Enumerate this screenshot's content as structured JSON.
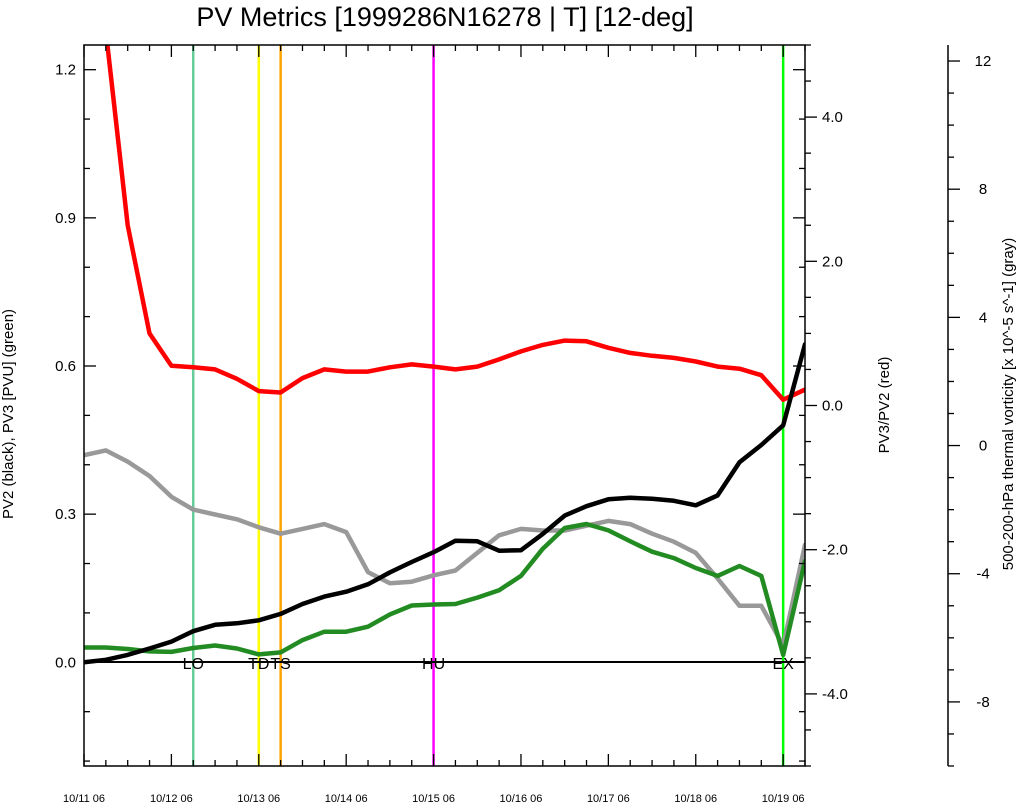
{
  "chart_data": {
    "type": "line",
    "title": "PV Metrics [1999286N16278 | T] [12-deg]",
    "xlabel": "",
    "x_tick_labels": [
      "10/11 06",
      "10/12 06",
      "10/13 06",
      "10/14 06",
      "10/15 06",
      "10/16 06",
      "10/17 06",
      "10/18 06",
      "10/19 06"
    ],
    "xlim": [
      0,
      8.25
    ],
    "left_axis": {
      "label": "PV2 (black), PV3 [PVU] (green)",
      "ylim": [
        -0.21,
        1.25
      ],
      "ticks": [
        "0.0",
        "0.3",
        "0.6",
        "0.9",
        "1.2"
      ]
    },
    "right_axis_1": {
      "label": "PV3/PV2 (red)",
      "ylim": [
        -5.0,
        5.0
      ],
      "ticks": [
        "-4.0",
        "-2.0",
        "0.0",
        "2.0",
        "4.0"
      ]
    },
    "right_axis_2": {
      "label": "500-200-hPa thermal vorticity [x 10^-5 s^-1] (gray)",
      "ylim": [
        -10.0,
        12.5
      ],
      "ticks": [
        "-8",
        "-4",
        "0",
        "4",
        "8",
        "12"
      ]
    },
    "grid": false,
    "series": [
      {
        "name": "PV2",
        "axis": "left",
        "color": "#000000",
        "x": [
          0,
          0.25,
          0.5,
          0.75,
          1.0,
          1.25,
          1.5,
          1.75,
          2.0,
          2.25,
          2.5,
          2.75,
          3.0,
          3.25,
          3.5,
          3.75,
          4.0,
          4.25,
          4.5,
          4.75,
          5.0,
          5.25,
          5.5,
          5.75,
          6.0,
          6.25,
          6.5,
          6.75,
          7.0,
          7.25,
          7.5,
          7.75,
          8.0,
          8.25
        ],
        "y": [
          0.0,
          0.005,
          0.015,
          0.028,
          0.042,
          0.063,
          0.076,
          0.079,
          0.085,
          0.098,
          0.118,
          0.133,
          0.143,
          0.158,
          0.182,
          0.203,
          0.223,
          0.246,
          0.245,
          0.226,
          0.227,
          0.26,
          0.297,
          0.316,
          0.33,
          0.333,
          0.331,
          0.327,
          0.318,
          0.338,
          0.405,
          0.44,
          0.48,
          0.644
        ]
      },
      {
        "name": "PV3",
        "axis": "left",
        "color": "#228b22",
        "x": [
          0,
          0.25,
          0.5,
          0.75,
          1.0,
          1.25,
          1.5,
          1.75,
          2.0,
          2.25,
          2.5,
          2.75,
          3.0,
          3.25,
          3.5,
          3.75,
          4.0,
          4.25,
          4.5,
          4.75,
          5.0,
          5.25,
          5.5,
          5.75,
          6.0,
          6.25,
          6.5,
          6.75,
          7.0,
          7.25,
          7.5,
          7.75,
          8.0,
          8.25
        ],
        "y": [
          0.03,
          0.03,
          0.027,
          0.022,
          0.021,
          0.029,
          0.034,
          0.028,
          0.016,
          0.02,
          0.045,
          0.062,
          0.062,
          0.072,
          0.097,
          0.115,
          0.117,
          0.118,
          0.131,
          0.146,
          0.175,
          0.23,
          0.272,
          0.28,
          0.267,
          0.245,
          0.224,
          0.211,
          0.191,
          0.175,
          0.195,
          0.175,
          0.015,
          0.205
        ]
      },
      {
        "name": "PV3/PV2",
        "axis": "right_1",
        "color": "#ff0000",
        "x": [
          0.25,
          0.5,
          0.75,
          1.0,
          1.25,
          1.5,
          1.75,
          2.0,
          2.25,
          2.5,
          2.75,
          3.0,
          3.25,
          3.5,
          3.75,
          4.0,
          4.25,
          4.5,
          4.75,
          5.0,
          5.25,
          5.5,
          5.75,
          6.0,
          6.25,
          6.5,
          6.75,
          7.0,
          7.25,
          7.5,
          7.75,
          8.0,
          8.25
        ],
        "y": [
          5.2,
          2.5,
          1.0,
          0.55,
          0.53,
          0.5,
          0.37,
          0.2,
          0.18,
          0.38,
          0.5,
          0.47,
          0.47,
          0.53,
          0.57,
          0.54,
          0.5,
          0.54,
          0.64,
          0.75,
          0.84,
          0.9,
          0.89,
          0.8,
          0.73,
          0.69,
          0.66,
          0.61,
          0.54,
          0.51,
          0.42,
          0.08,
          0.22
        ]
      },
      {
        "name": "thermal vorticity",
        "axis": "right_2",
        "color": "#999999",
        "x": [
          0,
          0.25,
          0.5,
          0.75,
          1.0,
          1.25,
          1.5,
          1.75,
          2.0,
          2.25,
          2.5,
          2.75,
          3.0,
          3.25,
          3.5,
          3.75,
          4.0,
          4.25,
          4.5,
          4.75,
          5.0,
          5.25,
          5.5,
          5.75,
          6.0,
          6.25,
          6.5,
          6.75,
          7.0,
          7.25,
          7.5,
          7.75,
          8.0,
          8.25
        ],
        "y": [
          -0.3,
          -0.15,
          -0.5,
          -0.95,
          -1.6,
          -2.0,
          -2.15,
          -2.3,
          -2.55,
          -2.75,
          -2.6,
          -2.45,
          -2.7,
          -3.95,
          -4.3,
          -4.25,
          -4.05,
          -3.9,
          -3.35,
          -2.8,
          -2.6,
          -2.65,
          -2.65,
          -2.5,
          -2.35,
          -2.45,
          -2.75,
          -3.0,
          -3.35,
          -4.15,
          -5.0,
          -5.0,
          -6.25,
          -3.1
        ]
      }
    ],
    "vertical_markers": [
      {
        "x": 1.25,
        "color": "#66cc99",
        "label": "LO"
      },
      {
        "x": 2.0,
        "color": "#ffff00",
        "label": "TD"
      },
      {
        "x": 2.25,
        "color": "#ffa500",
        "label": "TS"
      },
      {
        "x": 4.0,
        "color": "#ff00ff",
        "label": "HU"
      },
      {
        "x": 8.0,
        "color": "#00ff00",
        "label": "EX"
      }
    ]
  }
}
